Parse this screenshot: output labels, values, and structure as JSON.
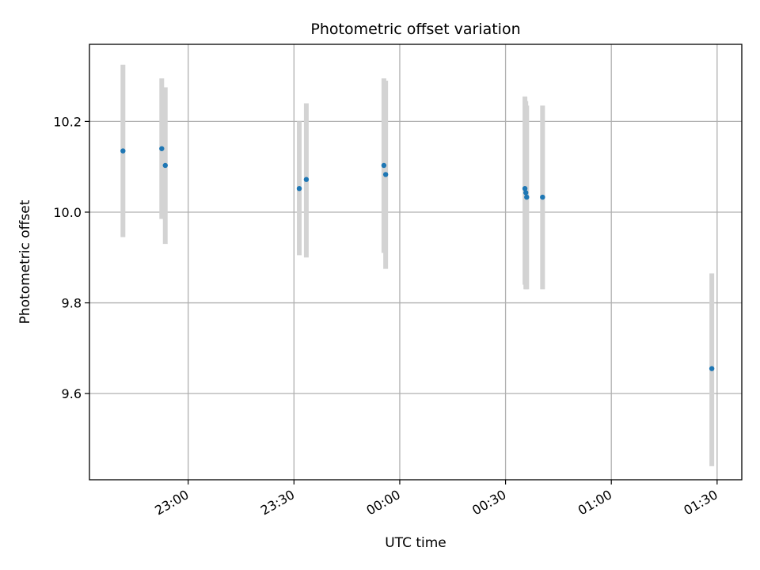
{
  "chart_data": {
    "type": "scatter",
    "title": "Photometric offset variation",
    "xlabel": "UTC time",
    "ylabel": "Photometric offset",
    "xlim": [
      "22:32",
      "01:37"
    ],
    "ylim": [
      9.41,
      10.37
    ],
    "x_ticks": [
      "23:00",
      "23:30",
      "00:00",
      "00:30",
      "01:00",
      "01:30"
    ],
    "y_ticks": [
      9.6,
      9.8,
      10.0,
      10.2
    ],
    "grid": true,
    "colors": {
      "marker": "#1f77b4",
      "errorbar": "#d3d3d3",
      "grid": "#b0b0b0"
    },
    "points": [
      {
        "x": "22:41:30",
        "y": 10.135,
        "y_low": 9.945,
        "y_high": 10.325
      },
      {
        "x": "22:52:30",
        "y": 10.14,
        "y_low": 9.985,
        "y_high": 10.295
      },
      {
        "x": "22:53:30",
        "y": 10.103,
        "y_low": 9.93,
        "y_high": 10.275
      },
      {
        "x": "23:31:30",
        "y": 10.052,
        "y_low": 9.905,
        "y_high": 10.2
      },
      {
        "x": "23:33:30",
        "y": 10.072,
        "y_low": 9.9,
        "y_high": 10.24
      },
      {
        "x": "23:55:30",
        "y": 10.103,
        "y_low": 9.91,
        "y_high": 10.295
      },
      {
        "x": "23:56:00",
        "y": 10.083,
        "y_low": 9.875,
        "y_high": 10.29
      },
      {
        "x": "00:35:30",
        "y": 10.052,
        "y_low": 9.84,
        "y_high": 10.255
      },
      {
        "x": "00:35:45",
        "y": 10.043,
        "y_low": 9.83,
        "y_high": 10.245
      },
      {
        "x": "00:36:00",
        "y": 10.033,
        "y_low": 9.83,
        "y_high": 10.235
      },
      {
        "x": "00:40:30",
        "y": 10.033,
        "y_low": 9.83,
        "y_high": 10.235
      },
      {
        "x": "01:28:30",
        "y": 9.655,
        "y_low": 9.44,
        "y_high": 9.865
      }
    ]
  }
}
